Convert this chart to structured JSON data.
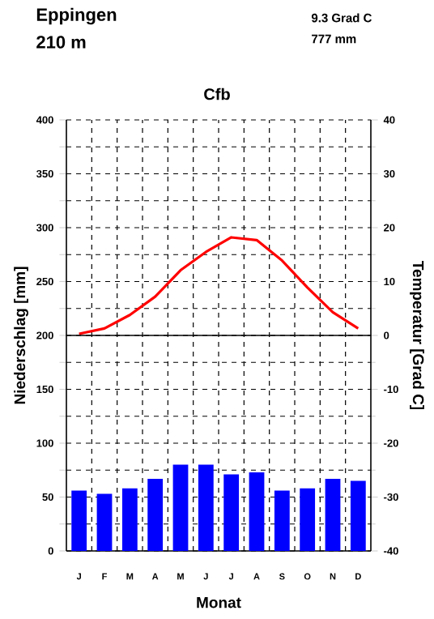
{
  "chart_data": {
    "type": "bar",
    "title": "Cfb",
    "annotations": [
      "Eppingen",
      "210 m",
      "9.3 Grad C",
      "777 mm"
    ],
    "xlabel": "Monat",
    "ylabel": "Niederschlag [mm]",
    "y2label": "Temperatur [Grad C]",
    "categories": [
      "J",
      "F",
      "M",
      "A",
      "M",
      "J",
      "J",
      "A",
      "S",
      "O",
      "N",
      "D"
    ],
    "series": [
      {
        "axis": "y",
        "color": "#0000ff",
        "values": [
          56,
          53,
          58,
          67,
          80,
          80,
          71,
          73,
          56,
          58,
          67,
          65
        ]
      },
      {
        "type": "line",
        "axis": "y2",
        "color": "#ff0000",
        "values": [
          0.3,
          1.3,
          3.8,
          7.2,
          12.1,
          15.5,
          18.2,
          17.7,
          13.9,
          8.9,
          4.3,
          1.3
        ]
      }
    ],
    "ylim": [
      0,
      400
    ],
    "yticks": [
      0,
      {
        "value": 25,
        "label": null
      },
      50,
      {
        "value": 75,
        "label": null
      },
      100,
      {
        "value": 125,
        "label": null
      },
      150,
      {
        "value": 175,
        "label": null
      },
      200,
      {
        "value": 225,
        "label": null
      },
      250,
      {
        "value": 275,
        "label": null
      },
      300,
      {
        "value": 325,
        "label": null
      },
      350,
      {
        "value": 375,
        "label": null
      },
      400
    ],
    "y2lim": [
      -40,
      40
    ],
    "y2ticks": [
      -40,
      -30,
      -20,
      -10,
      0,
      10,
      20,
      30,
      40
    ],
    "ref_lines": [
      {
        "axis": "y2",
        "value": 0
      }
    ],
    "grid": true
  }
}
